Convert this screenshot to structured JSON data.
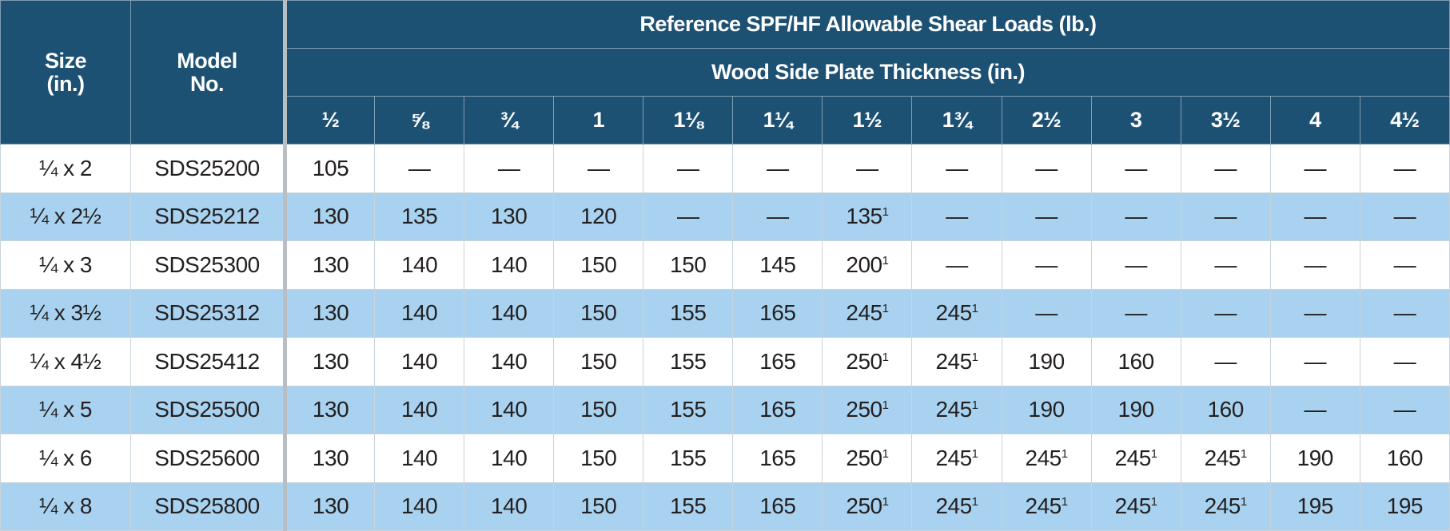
{
  "table": {
    "header": {
      "size": "Size (in.)",
      "model": "Model No.",
      "group": "Reference SPF/HF Allowable Shear Loads (lb.)",
      "subgroup": "Wood Side Plate Thickness (in.)",
      "thicknesses": [
        "½",
        "⅝",
        "¾",
        "1",
        "1⅛",
        "1¼",
        "1½",
        "1¾",
        "2½",
        "3",
        "3½",
        "4",
        "4½"
      ]
    },
    "rows": [
      {
        "size": "¼ x 2",
        "model": "SDS25200",
        "cells": [
          105,
          "—",
          "—",
          "—",
          "—",
          "—",
          "—",
          "—",
          "—",
          "—",
          "—",
          "—",
          "—"
        ]
      },
      {
        "size": "¼ x 2½",
        "model": "SDS25212",
        "cells": [
          130,
          135,
          130,
          120,
          "—",
          "—",
          {
            "text": 135,
            "note": "1"
          },
          "—",
          "—",
          "—",
          "—",
          "—",
          "—"
        ]
      },
      {
        "size": "¼ x 3",
        "model": "SDS25300",
        "cells": [
          130,
          140,
          140,
          150,
          150,
          145,
          {
            "text": 200,
            "note": "1"
          },
          "—",
          "—",
          "—",
          "—",
          "—",
          "—"
        ]
      },
      {
        "size": "¼ x 3½",
        "model": "SDS25312",
        "cells": [
          130,
          140,
          140,
          150,
          155,
          165,
          {
            "text": 245,
            "note": "1"
          },
          {
            "text": 245,
            "note": "1"
          },
          "—",
          "—",
          "—",
          "—",
          "—"
        ]
      },
      {
        "size": "¼ x 4½",
        "model": "SDS25412",
        "cells": [
          130,
          140,
          140,
          150,
          155,
          165,
          {
            "text": 250,
            "note": "1"
          },
          {
            "text": 245,
            "note": "1"
          },
          190,
          160,
          "—",
          "—",
          "—"
        ]
      },
      {
        "size": "¼ x 5",
        "model": "SDS25500",
        "cells": [
          130,
          140,
          140,
          150,
          155,
          165,
          {
            "text": 250,
            "note": "1"
          },
          {
            "text": 245,
            "note": "1"
          },
          190,
          190,
          160,
          "—",
          "—"
        ]
      },
      {
        "size": "¼ x 6",
        "model": "SDS25600",
        "cells": [
          130,
          140,
          140,
          150,
          155,
          165,
          {
            "text": 250,
            "note": "1"
          },
          {
            "text": 245,
            "note": "1"
          },
          {
            "text": 245,
            "note": "1"
          },
          {
            "text": 245,
            "note": "1"
          },
          {
            "text": 245,
            "note": "1"
          },
          190,
          160
        ]
      },
      {
        "size": "¼ x 8",
        "model": "SDS25800",
        "cells": [
          130,
          140,
          140,
          150,
          155,
          165,
          {
            "text": 250,
            "note": "1"
          },
          {
            "text": 245,
            "note": "1"
          },
          {
            "text": 245,
            "note": "1"
          },
          {
            "text": 245,
            "note": "1"
          },
          {
            "text": 245,
            "note": "1"
          },
          195,
          195
        ]
      }
    ]
  }
}
